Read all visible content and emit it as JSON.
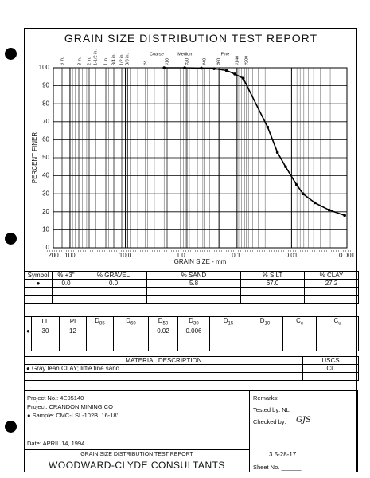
{
  "header": {
    "title": "GRAIN SIZE DISTRIBUTION TEST REPORT"
  },
  "chart_data": {
    "type": "line",
    "xlabel": "GRAIN SIZE - mm",
    "ylabel": "PERCENT FINER",
    "sieve_labels": [
      "6 in.",
      "3 in.",
      "2 in.",
      "1-1/2 in.",
      "1 in.",
      "3/4 in.",
      "1/2 in.",
      "3/8 in.",
      "#4",
      "#10",
      "#20",
      "#40",
      "#60",
      "#140",
      "#200"
    ],
    "size_ranges": [
      "Coarse",
      "Medium",
      "Fine"
    ],
    "x": [
      2,
      0.85,
      0.425,
      0.25,
      0.15,
      0.106,
      0.075,
      0.027,
      0.018,
      0.0128,
      0.0081,
      0.0062,
      0.0038,
      0.0021,
      0.0011
    ],
    "values": [
      100,
      100,
      99.8,
      99.5,
      98.5,
      96.5,
      94.2,
      67,
      53,
      45,
      35,
      30,
      25,
      21,
      18
    ],
    "color": "#000000",
    "xscale": "log",
    "xlim": [
      200,
      0.001
    ],
    "xticks": [
      {
        "value": 200,
        "label": "200"
      },
      100,
      {
        "value": 10,
        "label": "10.0"
      },
      {
        "value": 1,
        "label": "1.0"
      },
      0.1,
      0.01,
      0.001
    ],
    "ylim": [
      0,
      100
    ],
    "yticks": [
      0,
      10,
      20,
      30,
      40,
      50,
      60,
      70,
      80,
      90,
      100
    ],
    "grid": true
  },
  "gradation_table": {
    "headers": [
      "Symbol",
      "% +3\"",
      "% GRAVEL",
      "% SAND",
      "% SILT",
      "% CLAY"
    ],
    "rows": [
      [
        "●",
        "0.0",
        "0.0",
        "5.8",
        "67.0",
        "27.2"
      ]
    ]
  },
  "properties_table": {
    "headers": [
      null,
      "LL",
      "PI",
      "D85",
      "D60",
      "D50",
      "D30",
      "D15",
      "D10",
      "Cc",
      "Cu"
    ],
    "rows": [
      [
        "●",
        "30",
        "12",
        null,
        null,
        "0.02",
        "0.006",
        null,
        null,
        null,
        null
      ]
    ]
  },
  "material_table": {
    "headers": [
      "MATERIAL DESCRIPTION",
      "USCS"
    ],
    "rows": [
      [
        "● Gray lean CLAY; little fine sand",
        "CL"
      ]
    ]
  },
  "project": {
    "number": "Project No.: 4E05140",
    "name": "Project: CRANDON MINING CO",
    "sample": "● Sample: CMC-LSL-102B, 16-18'",
    "date": "Date: APRIL 14, 1994",
    "remarks": "Remarks:",
    "tested_by": "Tested by:  NL",
    "checked_by": "Checked by:",
    "checked_sign": "GJS"
  },
  "footer": {
    "report": "GRAIN SIZE DISTRIBUTION TEST REPORT",
    "company": "WOODWARD-CLYDE CONSULTANTS",
    "figure": "3.5-28-17",
    "sheet": "Sheet No. ______"
  }
}
